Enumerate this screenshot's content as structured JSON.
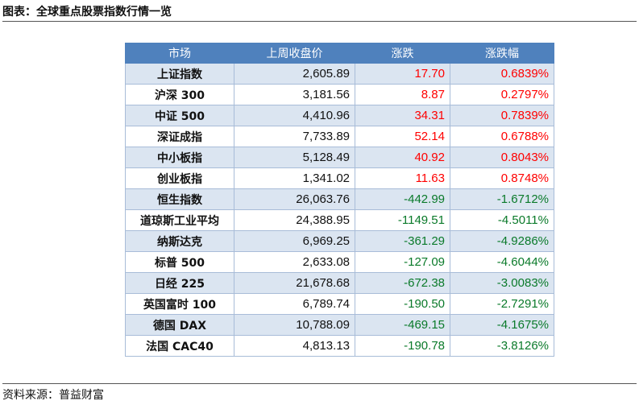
{
  "title": "图表：全球重点股票指数行情一览",
  "table": {
    "headers": [
      "市场",
      "上周收盘价",
      "涨跌",
      "涨跌幅"
    ],
    "rows": [
      {
        "market": "上证指数",
        "close": "2,605.89",
        "change": "17.70",
        "pct": "0.6839%"
      },
      {
        "market": "沪深 300",
        "close": "3,181.56",
        "change": "8.87",
        "pct": "0.2797%"
      },
      {
        "market": "中证 500",
        "close": "4,410.96",
        "change": "34.31",
        "pct": "0.7839%"
      },
      {
        "market": "深证成指",
        "close": "7,733.89",
        "change": "52.14",
        "pct": "0.6788%"
      },
      {
        "market": "中小板指",
        "close": "5,128.49",
        "change": "40.92",
        "pct": "0.8043%"
      },
      {
        "market": "创业板指",
        "close": "1,341.02",
        "change": "11.63",
        "pct": "0.8748%"
      },
      {
        "market": "恒生指数",
        "close": "26,063.76",
        "change": "-442.99",
        "pct": "-1.6712%"
      },
      {
        "market": "道琼斯工业平均",
        "close": "24,388.95",
        "change": "-1149.51",
        "pct": "-4.5011%"
      },
      {
        "market": "纳斯达克",
        "close": "6,969.25",
        "change": "-361.29",
        "pct": "-4.9286%"
      },
      {
        "market": "标普 500",
        "close": "2,633.08",
        "change": "-127.09",
        "pct": "-4.6044%"
      },
      {
        "market": "日经 225",
        "close": "21,678.68",
        "change": "-672.38",
        "pct": "-3.0083%"
      },
      {
        "market": "英国富时 100",
        "close": "6,789.74",
        "change": "-190.50",
        "pct": "-2.7291%"
      },
      {
        "market": "德国 DAX",
        "close": "10,788.09",
        "change": "-469.15",
        "pct": "-4.1675%"
      },
      {
        "market": "法国 CAC40",
        "close": "4,813.13",
        "change": "-190.78",
        "pct": "-3.8126%"
      }
    ]
  },
  "colors": {
    "header_bg": "#4f81bd",
    "row_shade": "#dbe5f1",
    "up": "#ff0000",
    "down": "#0a7a2a"
  },
  "source": "资料来源：普益财富"
}
